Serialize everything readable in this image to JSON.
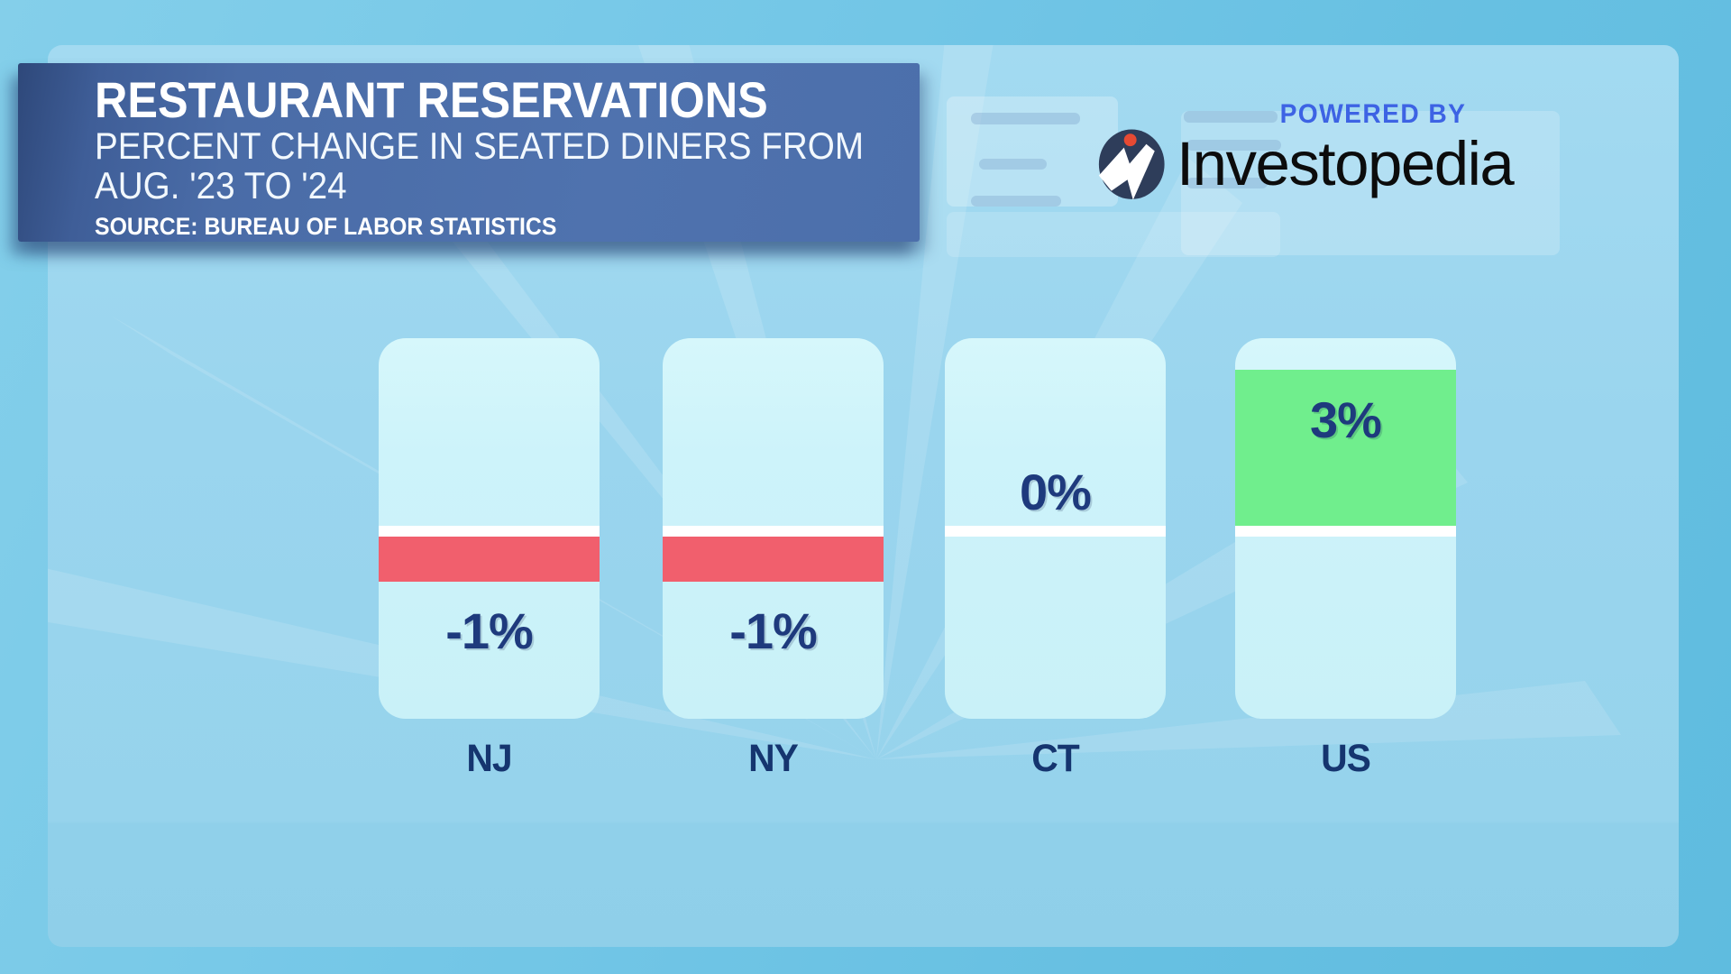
{
  "header": {
    "title": "RESTAURANT RESERVATIONS",
    "subtitle_line1": "PERCENT CHANGE IN SEATED DINERS FROM",
    "subtitle_line2": "AUG. '23 TO '24",
    "source": "SOURCE: BUREAU OF LABOR STATISTICS"
  },
  "branding": {
    "powered_by": "POWERED BY",
    "logo_text": "Investopedia"
  },
  "chart_data": {
    "type": "bar",
    "title": "Restaurant Reservations",
    "subtitle": "Percent change in seated diners from Aug. '23 to '24",
    "source": "Bureau of Labor Statistics",
    "unit": "%",
    "categories": [
      "NJ",
      "NY",
      "CT",
      "US"
    ],
    "values": [
      -1,
      -1,
      0,
      3
    ],
    "labels": [
      "-1%",
      "-1%",
      "0%",
      "3%"
    ],
    "grid": false,
    "legend": false,
    "colors": {
      "positive": "#70ee8d",
      "negative": "#f15f6d",
      "zero_line": "#ffffff",
      "track": "#cdf3fa",
      "value_label": "#1e3a7d",
      "category_label": "#15356f",
      "panel_blue": "#4a6ca7",
      "powered_by_blue": "#3d63e4",
      "background": "#74c7e7"
    }
  }
}
